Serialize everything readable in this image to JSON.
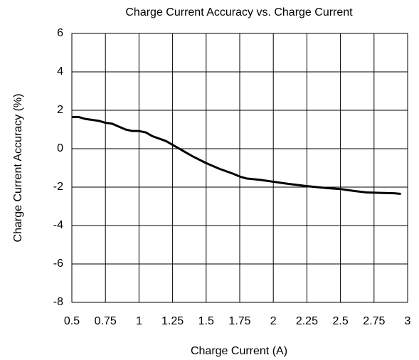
{
  "chart_data": {
    "type": "line",
    "title": "Charge Current Accuracy vs. Charge Current",
    "xlabel": "Charge Current (A)",
    "ylabel": "Charge Current Accuracy (%)",
    "xlim": [
      0.5,
      3
    ],
    "xticks": [
      0.5,
      0.75,
      1,
      1.25,
      1.5,
      1.75,
      2,
      2.25,
      2.5,
      2.75,
      3
    ],
    "ylim": [
      -8,
      6
    ],
    "yticks": [
      6,
      4,
      2,
      0,
      -2,
      -4,
      -6,
      -8
    ],
    "grid": true,
    "series": [
      {
        "color": "#000000",
        "x": [
          0.5,
          0.55,
          0.6,
          0.7,
          0.75,
          0.8,
          0.85,
          0.9,
          0.95,
          1.0,
          1.05,
          1.1,
          1.2,
          1.25,
          1.3,
          1.4,
          1.5,
          1.6,
          1.7,
          1.75,
          1.8,
          1.9,
          2.0,
          2.1,
          2.25,
          2.4,
          2.5,
          2.6,
          2.7,
          2.8,
          2.9,
          2.95
        ],
        "values": [
          1.65,
          1.65,
          1.55,
          1.45,
          1.35,
          1.3,
          1.15,
          1.0,
          0.92,
          0.92,
          0.85,
          0.65,
          0.4,
          0.2,
          0,
          -0.4,
          -0.75,
          -1.05,
          -1.3,
          -1.45,
          -1.55,
          -1.62,
          -1.72,
          -1.82,
          -1.95,
          -2.05,
          -2.1,
          -2.2,
          -2.28,
          -2.3,
          -2.32,
          -2.35
        ]
      }
    ]
  }
}
